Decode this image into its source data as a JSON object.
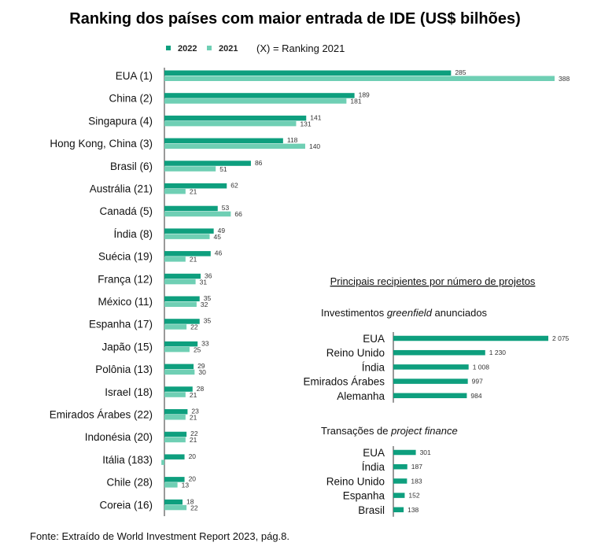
{
  "colors": {
    "y2022": "#0e9f7e",
    "y2021": "#6fcfb4"
  },
  "chart_data": [
    {
      "type": "bar",
      "orientation": "horizontal",
      "title": "Ranking dos países com maior entrada de IDE (US$ bilhões)",
      "legend_note": "(X) = Ranking 2021",
      "legend_position": "top",
      "xlim": [
        0,
        388
      ],
      "grid": false,
      "categories": [
        "EUA (1)",
        "China (2)",
        "Singapura (4)",
        "Hong Kong, China (3)",
        "Brasil (6)",
        "Austrália (21)",
        "Canadá (5)",
        "Índia (8)",
        "Suécia (19)",
        "França (12)",
        "México (11)",
        "Espanha (17)",
        "Japão (15)",
        "Polônia (13)",
        "Israel (18)",
        "Emirados Árabes (22)",
        "Indonésia (20)",
        "Itália (183)",
        "Chile (28)",
        "Coreia (16)"
      ],
      "series": [
        {
          "name": "2022",
          "values": [
            285,
            189,
            141,
            118,
            86,
            62,
            53,
            49,
            46,
            36,
            35,
            35,
            33,
            29,
            28,
            23,
            22,
            20,
            20,
            18
          ]
        },
        {
          "name": "2021",
          "values": [
            388,
            181,
            131,
            140,
            51,
            21,
            66,
            45,
            21,
            31,
            32,
            22,
            25,
            30,
            21,
            21,
            21,
            -3,
            13,
            22
          ],
          "labels": [
            "388",
            "181",
            "131",
            "140",
            "51",
            "21",
            "66",
            "45",
            "21",
            "31",
            "32",
            "22",
            "25",
            "30",
            "21",
            "21",
            "21",
            "",
            "13",
            "22"
          ]
        }
      ]
    },
    {
      "type": "bar",
      "orientation": "horizontal",
      "heading": "Principais recipientes por número de projetos",
      "subtitle_parts": [
        "Investimentos ",
        "greenfield",
        " anunciados"
      ],
      "xlim": [
        0,
        2075
      ],
      "categories": [
        "EUA",
        "Reino Unido",
        "Índia",
        "Emirados Árabes",
        "Alemanha"
      ],
      "values": [
        2075,
        1230,
        1008,
        997,
        984
      ],
      "value_labels": [
        "2 075",
        "1 230",
        "1 008",
        "997",
        "984"
      ]
    },
    {
      "type": "bar",
      "orientation": "horizontal",
      "subtitle_parts": [
        "Transações de ",
        "project finance",
        ""
      ],
      "xlim": [
        0,
        2075
      ],
      "categories": [
        "EUA",
        "Índia",
        "Reino Unido",
        "Espanha",
        "Brasil"
      ],
      "values": [
        301,
        187,
        183,
        152,
        138
      ],
      "value_labels": [
        "301",
        "187",
        "183",
        "152",
        "138"
      ]
    }
  ],
  "source": "Fonte: Extraído de World Investment Report 2023, pág.8."
}
